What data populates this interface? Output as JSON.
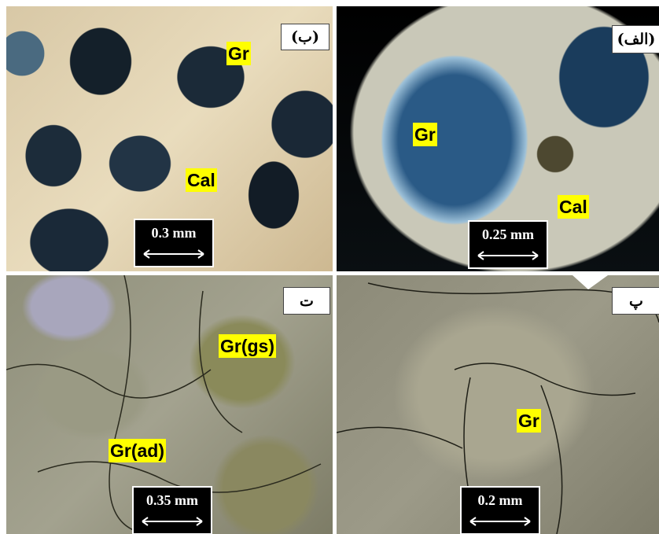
{
  "panels": [
    {
      "label": "(ب)",
      "minerals": [
        "Gr",
        "Cal"
      ],
      "scale": "0.3 mm"
    },
    {
      "label": "(الف)",
      "minerals": [
        "Gr",
        "Cal"
      ],
      "scale": "0.25 mm"
    },
    {
      "label": "ت",
      "minerals": [
        "Gr(gs)",
        "Gr(ad)"
      ],
      "scale": "0.35 mm"
    },
    {
      "label": "پ",
      "minerals": [
        "Gr"
      ],
      "scale": "0.2 mm"
    }
  ]
}
